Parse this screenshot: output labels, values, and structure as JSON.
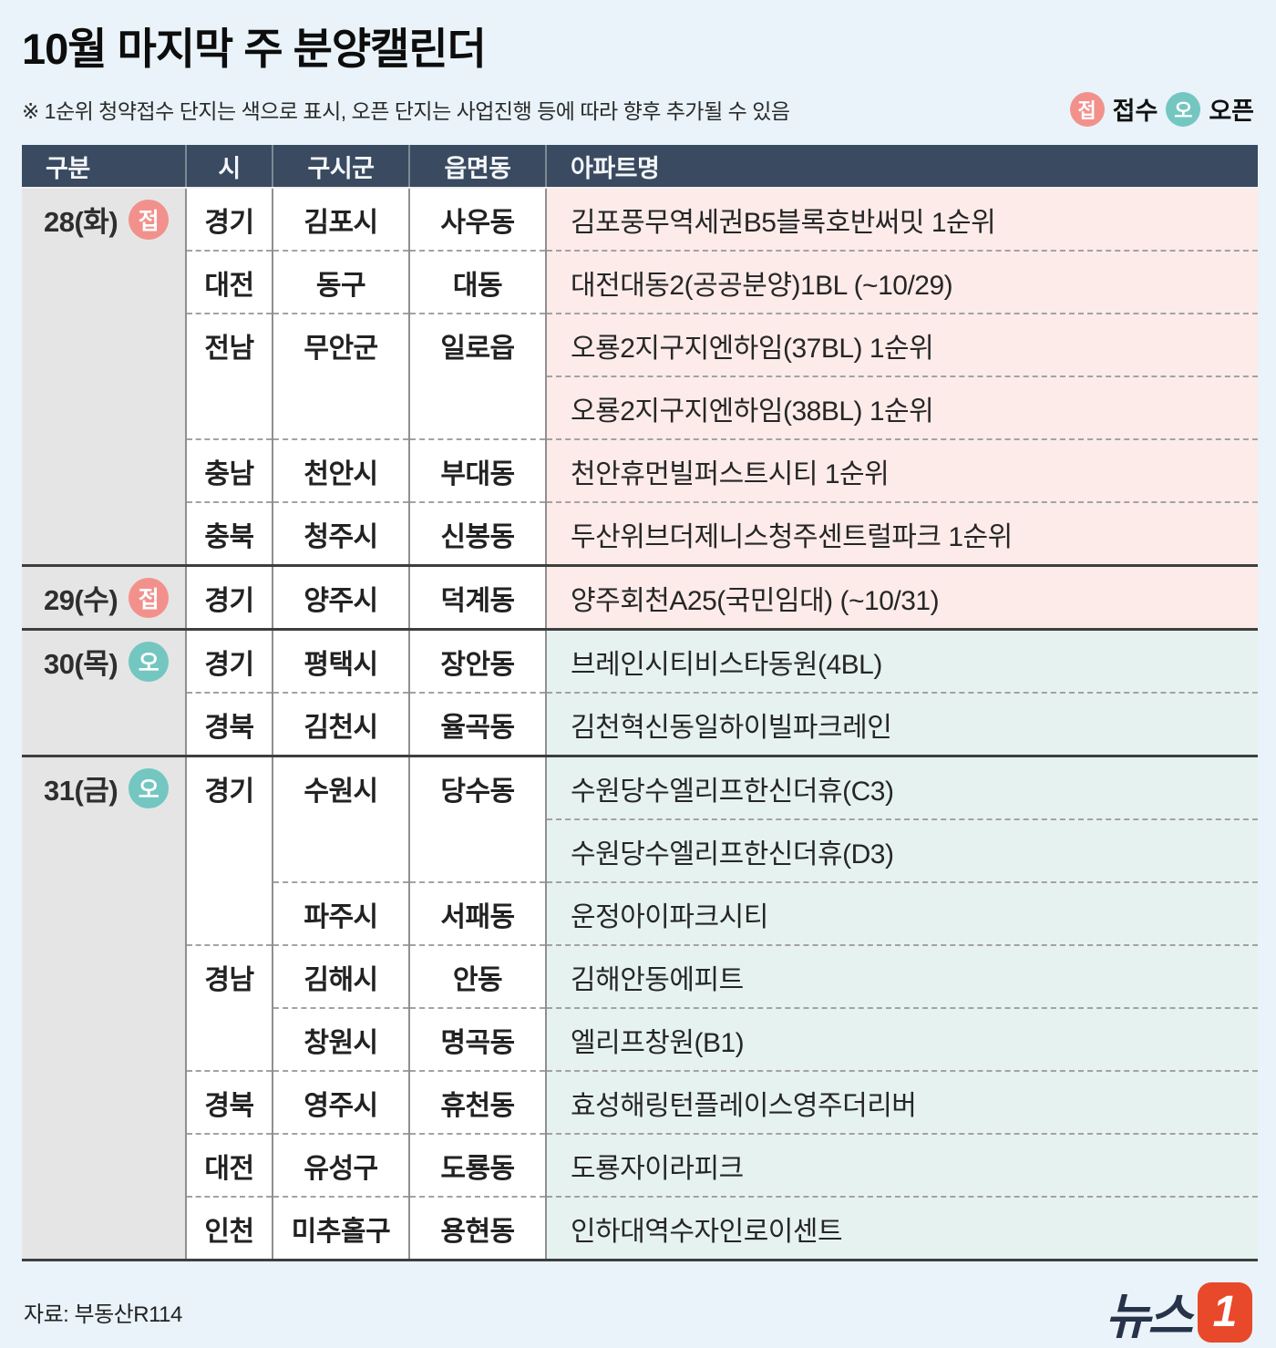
{
  "header": {
    "title": "10월 마지막 주 분양캘린더",
    "subtitle": "※ 1순위 청약접수 단지는 색으로 표시, 오픈 단지는 사업진행 등에 따라 향후 추가될 수 있음"
  },
  "legend": {
    "receipt_badge": "접",
    "receipt_label": "접수",
    "open_badge": "오",
    "open_label": "오픈"
  },
  "colors": {
    "page_bg": "#e9f3f9",
    "header_bg": "#3a4a60",
    "date_col_bg": "#e5e5e5",
    "receipt_row_bg": "#fcebe9",
    "open_row_bg": "#e6f2ef",
    "receipt_badge": "#f2918c",
    "open_badge": "#74c6c1",
    "logo_orange": "#e8492a"
  },
  "table": {
    "columns": [
      "구분",
      "시",
      "구시군",
      "읍면동",
      "아파트명"
    ],
    "groups": [
      {
        "date": "28(화)",
        "badge": "접",
        "type": "receipt",
        "rows": [
          {
            "si": "경기",
            "gu": "김포시",
            "dong": "사우동",
            "apt": "김포풍무역세권B5블록호반써밋 1순위"
          },
          {
            "si": "대전",
            "gu": "동구",
            "dong": "대동",
            "apt": "대전대동2(공공분양)1BL (~10/29)"
          },
          {
            "si": "전남",
            "si_span": 2,
            "gu": "무안군",
            "gu_span": 2,
            "dong": "일로읍",
            "dong_span": 2,
            "apt": "오룡2지구지엔하임(37BL) 1순위"
          },
          {
            "apt": "오룡2지구지엔하임(38BL) 1순위"
          },
          {
            "si": "충남",
            "gu": "천안시",
            "dong": "부대동",
            "apt": "천안휴먼빌퍼스트시티 1순위"
          },
          {
            "si": "충북",
            "gu": "청주시",
            "dong": "신봉동",
            "apt": "두산위브더제니스청주센트럴파크 1순위"
          }
        ]
      },
      {
        "date": "29(수)",
        "badge": "접",
        "type": "receipt",
        "rows": [
          {
            "si": "경기",
            "gu": "양주시",
            "dong": "덕계동",
            "apt": "양주회천A25(국민임대) (~10/31)"
          }
        ]
      },
      {
        "date": "30(목)",
        "badge": "오",
        "type": "open",
        "rows": [
          {
            "si": "경기",
            "gu": "평택시",
            "dong": "장안동",
            "apt": "브레인시티비스타동원(4BL)"
          },
          {
            "si": "경북",
            "gu": "김천시",
            "dong": "율곡동",
            "apt": "김천혁신동일하이빌파크레인"
          }
        ]
      },
      {
        "date": "31(금)",
        "badge": "오",
        "type": "open",
        "rows": [
          {
            "si": "경기",
            "si_span": 3,
            "gu": "수원시",
            "gu_span": 2,
            "dong": "당수동",
            "dong_span": 2,
            "apt": "수원당수엘리프한신더휴(C3)"
          },
          {
            "apt": "수원당수엘리프한신더휴(D3)"
          },
          {
            "gu": "파주시",
            "dong": "서패동",
            "apt": "운정아이파크시티"
          },
          {
            "si": "경남",
            "si_span": 2,
            "gu": "김해시",
            "dong": "안동",
            "apt": "김해안동에피트"
          },
          {
            "gu": "창원시",
            "dong": "명곡동",
            "apt": "엘리프창원(B1)"
          },
          {
            "si": "경북",
            "gu": "영주시",
            "dong": "휴천동",
            "apt": "효성해링턴플레이스영주더리버"
          },
          {
            "si": "대전",
            "gu": "유성구",
            "dong": "도룡동",
            "apt": "도룡자이라피크"
          },
          {
            "si": "인천",
            "gu": "미추홀구",
            "dong": "용현동",
            "apt": "인하대역수자인로이센트"
          }
        ]
      }
    ]
  },
  "footer": {
    "source": "자료: 부동산R114",
    "logo_text": "뉴스",
    "logo_mark": "1"
  }
}
